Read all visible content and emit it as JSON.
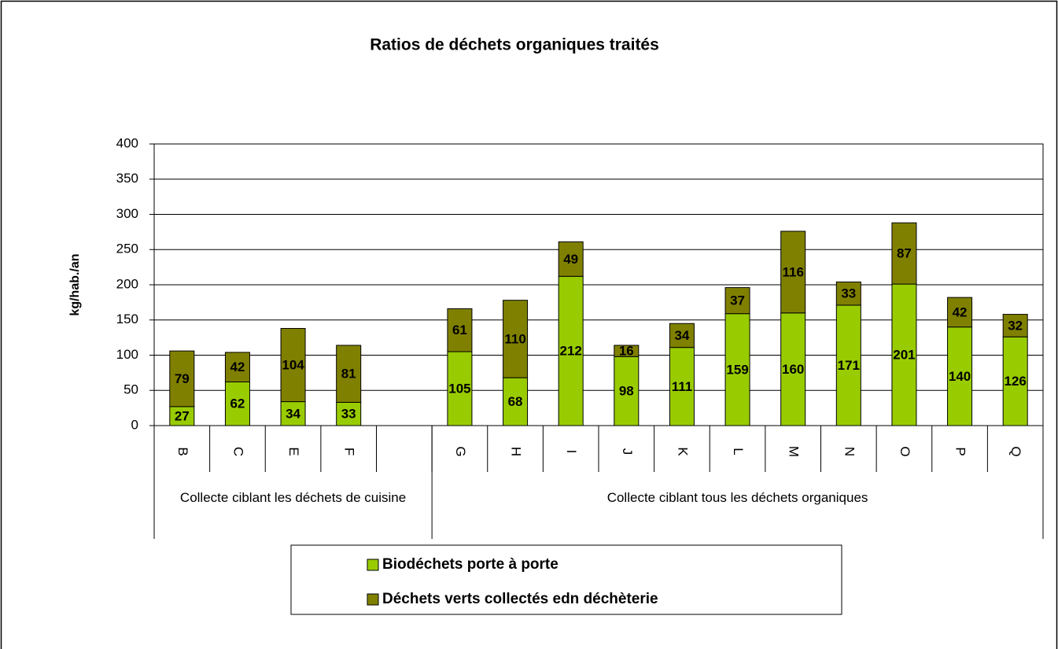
{
  "chart_data": {
    "type": "stacked_bar",
    "title": "Ratios de déchets organiques traités",
    "y_label": "kg/hab./an",
    "categories": [
      "B",
      "C",
      "E",
      "F",
      null,
      "G",
      "H",
      "I",
      "J",
      "K",
      "L",
      "M",
      "N",
      "O",
      "P",
      "Q"
    ],
    "groups": [
      {
        "label": "Collecte ciblant les déchets de cuisine",
        "count": 5
      },
      {
        "label": "Collecte ciblant tous les déchets organiques",
        "count": 11
      }
    ],
    "series": [
      {
        "name": "Biodéchets porte à porte",
        "color": "#99cc00",
        "values": [
          27,
          62,
          34,
          33,
          null,
          105,
          68,
          212,
          98,
          111,
          159,
          160,
          171,
          201,
          140,
          126
        ]
      },
      {
        "name": "Déchets verts collectés edn déchèterie",
        "color": "#808000",
        "values": [
          79,
          42,
          104,
          81,
          null,
          61,
          110,
          49,
          16,
          34,
          37,
          116,
          33,
          87,
          42,
          32
        ]
      }
    ],
    "ylim": [
      0,
      400
    ],
    "yticks": [
      0,
      50,
      100,
      150,
      200,
      250,
      300,
      350,
      400
    ],
    "grid": true
  }
}
